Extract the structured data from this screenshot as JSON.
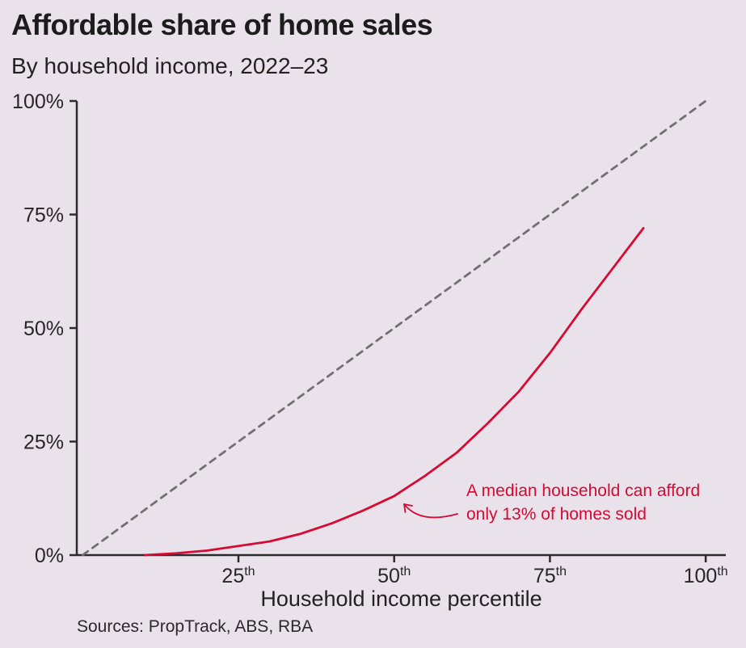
{
  "title": "Affordable share of home sales",
  "subtitle": "By household income, 2022–23",
  "xlabel": "Household income percentile",
  "source": "Sources: PropTrack, ABS, RBA",
  "annotation": {
    "line1": "A median household can afford",
    "line2": "only 13% of homes sold"
  },
  "colors": {
    "background": "#EAE2EA",
    "axis": "#2b2b2b",
    "text": "#262626",
    "line": "#D60A33",
    "dashed": "#707070"
  },
  "chart_data": {
    "type": "line",
    "title": "Affordable share of home sales",
    "subtitle": "By household income, 2022–23",
    "xlabel": "Household income percentile",
    "ylabel": "Affordable share of home sales",
    "xlim": [
      0,
      103
    ],
    "ylim": [
      0,
      100
    ],
    "grid": false,
    "legend": "none",
    "x_ticks": [
      {
        "value": 25,
        "label": "25",
        "suffix": "th"
      },
      {
        "value": 50,
        "label": "50",
        "suffix": "th"
      },
      {
        "value": 75,
        "label": "75",
        "suffix": "th"
      },
      {
        "value": 100,
        "label": "100",
        "suffix": "th"
      }
    ],
    "y_ticks": [
      {
        "value": 0,
        "label": "0%"
      },
      {
        "value": 25,
        "label": "25%"
      },
      {
        "value": 50,
        "label": "50%"
      },
      {
        "value": 75,
        "label": "75%"
      },
      {
        "value": 100,
        "label": "100%"
      }
    ],
    "series": [
      {
        "name": "Affordable share of home sales",
        "color": "#D60A33",
        "style": "solid",
        "x": [
          10,
          15,
          20,
          25,
          30,
          35,
          40,
          45,
          50,
          55,
          60,
          65,
          70,
          75,
          80,
          85,
          90
        ],
        "y": [
          0,
          0.4,
          1,
          2,
          3,
          4.7,
          7,
          9.8,
          13,
          17.5,
          22.5,
          29,
          36,
          44.5,
          54,
          63,
          72
        ]
      },
      {
        "name": "45-degree reference line",
        "color": "#707070",
        "style": "dashed",
        "x": [
          0,
          100
        ],
        "y": [
          0,
          100
        ]
      }
    ],
    "annotations": [
      {
        "text": "A median household can afford only 13% of homes sold",
        "target_x": 50,
        "target_y": 13
      }
    ]
  }
}
